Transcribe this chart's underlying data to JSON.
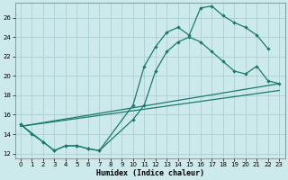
{
  "xlabel": "Humidex (Indice chaleur)",
  "background_color": "#cce9ec",
  "grid_color": "#aacfd4",
  "line_color": "#1a7a6e",
  "xlim": [
    -0.5,
    23.5
  ],
  "ylim": [
    11.5,
    27.5
  ],
  "yticks": [
    12,
    14,
    16,
    18,
    20,
    22,
    24,
    26
  ],
  "xticks": [
    0,
    1,
    2,
    3,
    4,
    5,
    6,
    7,
    8,
    9,
    10,
    11,
    12,
    13,
    14,
    15,
    16,
    17,
    18,
    19,
    20,
    21,
    22,
    23
  ],
  "curve1_x": [
    0,
    1,
    2,
    3,
    4,
    5,
    6,
    7,
    10,
    11,
    12,
    13,
    14,
    15,
    16,
    17,
    18,
    19,
    20,
    21,
    22
  ],
  "curve1_y": [
    15.0,
    14.0,
    13.2,
    12.3,
    12.8,
    12.8,
    12.5,
    12.3,
    17.0,
    21.0,
    23.0,
    24.5,
    25.0,
    24.2,
    27.0,
    27.2,
    26.2,
    25.5,
    25.0,
    24.2,
    22.8
  ],
  "curve2_x": [
    0,
    2,
    3,
    4,
    5,
    6,
    7,
    10,
    11,
    12,
    13,
    14,
    15,
    16,
    17,
    18,
    19,
    20,
    21,
    22,
    23
  ],
  "curve2_y": [
    15.0,
    13.2,
    12.3,
    12.8,
    12.8,
    12.5,
    12.3,
    15.5,
    17.0,
    20.5,
    22.5,
    23.5,
    24.0,
    23.5,
    22.5,
    21.5,
    20.5,
    20.2,
    21.0,
    19.5,
    19.2
  ],
  "line1_x": [
    0,
    23
  ],
  "line1_y": [
    14.8,
    19.2
  ],
  "line2_x": [
    0,
    23
  ],
  "line2_y": [
    14.8,
    18.5
  ]
}
